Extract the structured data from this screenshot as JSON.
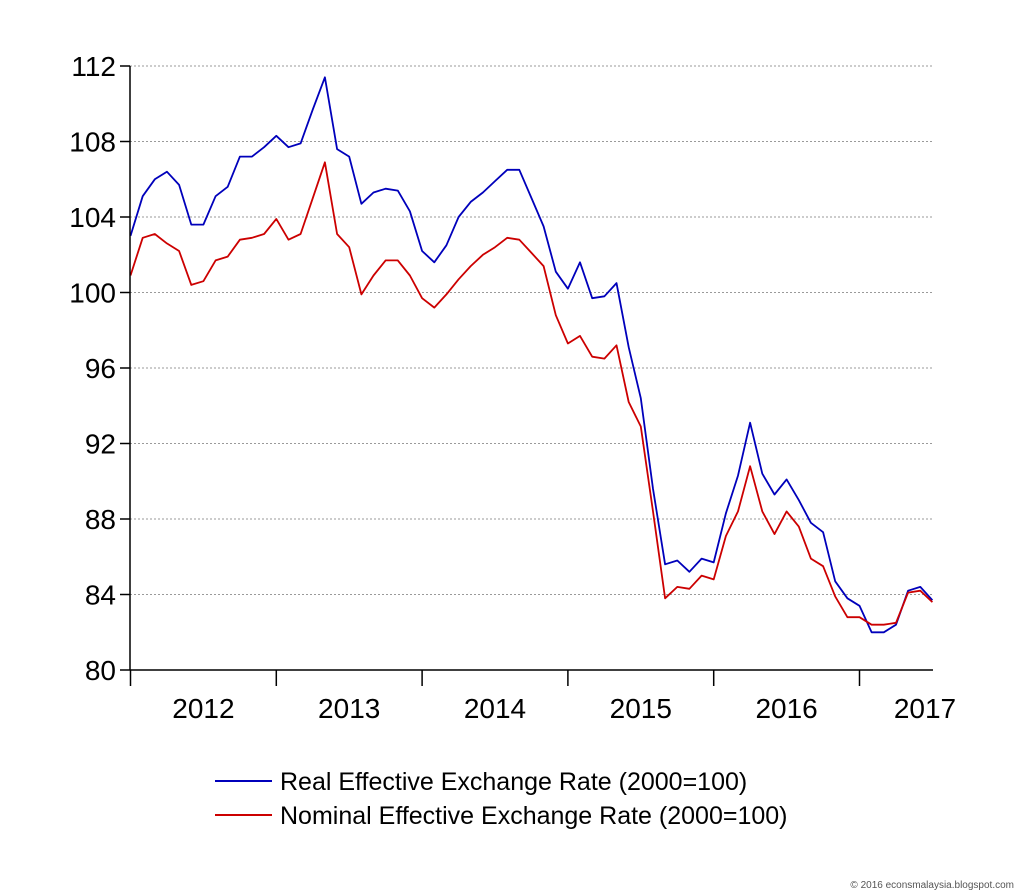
{
  "chart_data": {
    "type": "line",
    "xlabel": "",
    "ylabel": "",
    "ylim": [
      80,
      112
    ],
    "y_ticks": [
      "80",
      "84",
      "88",
      "92",
      "96",
      "100",
      "104",
      "108",
      "112"
    ],
    "x_year_labels": [
      "2012",
      "2013",
      "2014",
      "2015",
      "2016",
      "2017"
    ],
    "grid": "horizontal dotted",
    "legend_position": "bottom",
    "x_start": "2012-01",
    "x_end": "2017-04",
    "series": [
      {
        "name": "Real Effective Exchange Rate (2000=100)",
        "color": "#0000bb",
        "values": [
          103.0,
          105.1,
          106.0,
          106.4,
          105.7,
          103.6,
          103.6,
          105.1,
          105.6,
          107.2,
          107.2,
          107.7,
          108.3,
          107.7,
          107.9,
          109.7,
          111.4,
          107.6,
          107.2,
          104.7,
          105.3,
          105.5,
          105.4,
          104.3,
          102.2,
          101.6,
          102.5,
          104.0,
          104.8,
          105.3,
          105.9,
          106.5,
          106.5,
          105.0,
          103.5,
          101.1,
          100.2,
          101.6,
          99.7,
          99.8,
          100.5,
          97.1,
          94.4,
          89.6,
          85.6,
          85.8,
          85.2,
          85.9,
          85.7,
          88.3,
          90.3,
          93.1,
          90.4,
          89.3,
          90.1,
          89.0,
          87.8,
          87.3,
          84.7,
          83.8,
          83.4,
          82.0,
          82.0,
          82.4,
          84.2,
          84.4,
          83.7
        ]
      },
      {
        "name": "Nominal Effective Exchange Rate (2000=100)",
        "color": "#cc0000",
        "values": [
          100.9,
          102.9,
          103.1,
          102.6,
          102.2,
          100.4,
          100.6,
          101.7,
          101.9,
          102.8,
          102.9,
          103.1,
          103.9,
          102.8,
          103.1,
          105.0,
          106.9,
          103.1,
          102.4,
          99.9,
          100.9,
          101.7,
          101.7,
          100.9,
          99.7,
          99.2,
          99.9,
          100.7,
          101.4,
          102.0,
          102.4,
          102.9,
          102.8,
          102.1,
          101.4,
          98.8,
          97.3,
          97.7,
          96.6,
          96.5,
          97.2,
          94.2,
          92.9,
          88.4,
          83.8,
          84.4,
          84.3,
          85.0,
          84.8,
          87.1,
          88.4,
          90.8,
          88.4,
          87.2,
          88.4,
          87.6,
          85.9,
          85.5,
          83.9,
          82.8,
          82.8,
          82.4,
          82.4,
          82.5,
          84.1,
          84.2,
          83.6
        ]
      }
    ]
  },
  "watermark": "© 2016 econsmalaysia.blogspot.com"
}
